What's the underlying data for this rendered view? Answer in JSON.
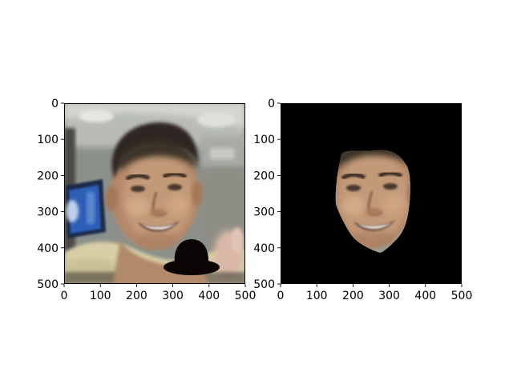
{
  "figure": {
    "background": "#ffffff",
    "panels": [
      {
        "kind": "image",
        "content": "blurry photo of a smiling man's face; a black bowler hat drawn at lower right; a blue monitor at left",
        "axes": {
          "x": {
            "range": [
              0,
              500
            ],
            "ticks": [
              0,
              100,
              200,
              300,
              400,
              500
            ],
            "labels": [
              "0",
              "100",
              "200",
              "300",
              "400",
              "500"
            ]
          },
          "y": {
            "range": [
              0,
              500
            ],
            "ticks": [
              0,
              100,
              200,
              300,
              400,
              500
            ],
            "labels": [
              "0",
              "100",
              "200",
              "300",
              "400",
              "500"
            ],
            "inverted": true
          }
        }
      },
      {
        "kind": "image",
        "content": "segmented face of the same man on a black background",
        "axes": {
          "x": {
            "range": [
              0,
              500
            ],
            "ticks": [
              0,
              100,
              200,
              300,
              400,
              500
            ],
            "labels": [
              "0",
              "100",
              "200",
              "300",
              "400",
              "500"
            ]
          },
          "y": {
            "range": [
              0,
              500
            ],
            "ticks": [
              0,
              100,
              200,
              300,
              400,
              500
            ],
            "labels": [
              "0",
              "100",
              "200",
              "300",
              "400",
              "500"
            ],
            "inverted": true
          }
        }
      }
    ],
    "colors": {
      "mask_background": "#000000",
      "hat": "#0a0404",
      "monitor": "#2f5fb8"
    }
  }
}
